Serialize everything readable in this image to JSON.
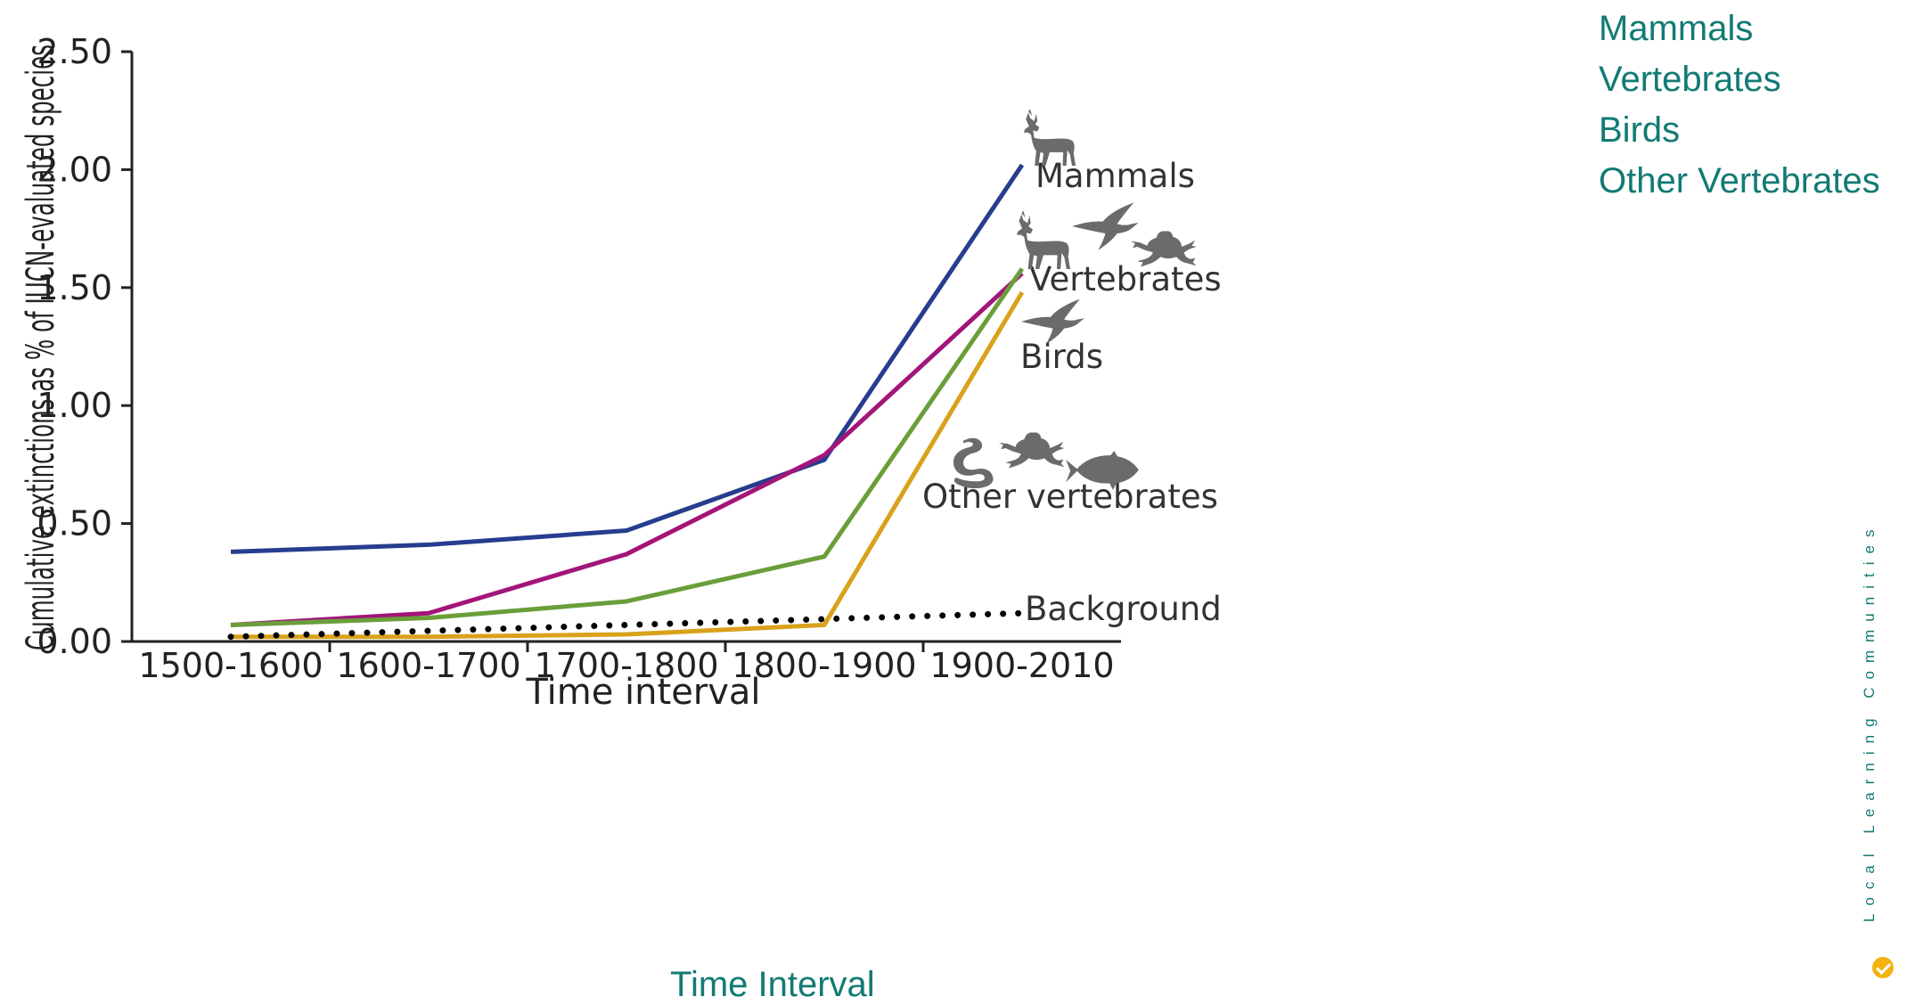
{
  "chart_data": {
    "type": "line",
    "categories": [
      "1500-1600",
      "1600-1700",
      "1700-1800",
      "1800-1900",
      "1900-2010"
    ],
    "xlabel": "Time interval",
    "ylabel": "Cumulative extinctions as % of IUCN-evaluated species",
    "ylim": [
      0,
      2.5
    ],
    "yticks": [
      "0.00",
      "0.50",
      "1.00",
      "1.50",
      "2.00",
      "2.50"
    ],
    "grid": false,
    "series": [
      {
        "name": "Mammals",
        "color": "#263d8f",
        "style": "solid",
        "values": [
          0.38,
          0.41,
          0.47,
          0.77,
          2.02
        ]
      },
      {
        "name": "Vertebrates",
        "color": "#a3157a",
        "style": "solid",
        "values": [
          0.07,
          0.12,
          0.37,
          0.79,
          1.56
        ]
      },
      {
        "name": "Birds",
        "color": "#6a9e3a",
        "style": "solid",
        "values": [
          0.07,
          0.1,
          0.17,
          0.36,
          1.58
        ]
      },
      {
        "name": "Other vertebrates",
        "color": "#d9a21b",
        "style": "solid",
        "values": [
          0.02,
          0.02,
          0.03,
          0.07,
          1.48
        ]
      },
      {
        "name": "Background",
        "color": "#000000",
        "style": "dotted",
        "values": [
          0.02,
          0.045,
          0.07,
          0.095,
          0.12
        ]
      }
    ],
    "annotations": {
      "mammals": "Mammals",
      "vertebrates": "Vertebrates",
      "birds": "Birds",
      "other_vertebrates": "Other vertebrates",
      "background": "Background"
    },
    "icons": [
      "deer-icon",
      "swallow-icon",
      "frog-icon",
      "snake-icon",
      "fish-icon"
    ]
  },
  "overlay": {
    "legend": [
      "Mammals",
      "Vertebrates",
      "Birds",
      "Other Vertebrates"
    ],
    "x_caption": "Time Interval",
    "side_text": "Local Learning Communities",
    "colors": {
      "teal": "#127a74",
      "logo": "#f2b311"
    }
  }
}
